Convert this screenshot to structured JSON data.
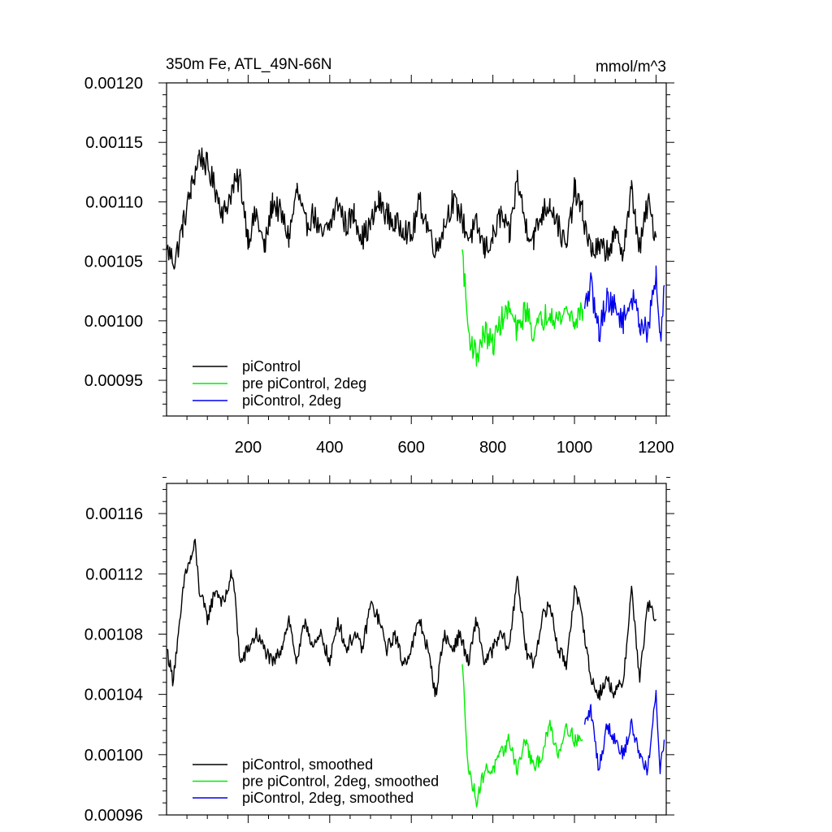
{
  "chart_data": [
    {
      "type": "line",
      "title": "350m Fe, ATL_49N-66N",
      "units": "mmol/m^3",
      "xlim": [
        0,
        1225
      ],
      "ylim": [
        0.00092,
        0.0012
      ],
      "x_ticks": [
        200,
        400,
        600,
        800,
        1000,
        1200
      ],
      "x_tick_labels": [
        "200",
        "400",
        "600",
        "800",
        "1000",
        "1200"
      ],
      "y_ticks": [
        0.00095,
        0.001,
        0.00105,
        0.0011,
        0.00115,
        0.0012
      ],
      "y_tick_labels": [
        "0.00095",
        "0.00100",
        "0.00105",
        "0.00110",
        "0.00115",
        "0.00120"
      ],
      "legend_position": "lower-left",
      "series": [
        {
          "name": "piControl",
          "color": "#000000",
          "x": [
            1,
            20,
            40,
            60,
            80,
            100,
            120,
            140,
            160,
            180,
            200,
            220,
            240,
            260,
            280,
            300,
            320,
            340,
            360,
            380,
            400,
            420,
            440,
            460,
            480,
            500,
            520,
            540,
            560,
            580,
            600,
            620,
            640,
            660,
            680,
            700,
            720,
            740,
            760,
            780,
            800,
            820,
            840,
            860,
            880,
            900,
            920,
            940,
            960,
            980,
            1000,
            1020,
            1040,
            1060,
            1080,
            1100,
            1120,
            1140,
            1160,
            1180,
            1200
          ],
          "y": [
            0.00106,
            0.00105,
            0.00108,
            0.00111,
            0.00114,
            0.00113,
            0.00111,
            0.00109,
            0.00111,
            0.00112,
            0.00107,
            0.00109,
            0.00106,
            0.0011,
            0.00109,
            0.00107,
            0.00111,
            0.00108,
            0.00109,
            0.00107,
            0.00108,
            0.0011,
            0.00108,
            0.00109,
            0.00107,
            0.00108,
            0.0011,
            0.00109,
            0.00108,
            0.00108,
            0.00107,
            0.0011,
            0.00108,
            0.00106,
            0.00108,
            0.0011,
            0.00109,
            0.00107,
            0.00108,
            0.00106,
            0.00107,
            0.00109,
            0.00107,
            0.00112,
            0.00108,
            0.00107,
            0.00109,
            0.0011,
            0.00108,
            0.00106,
            0.00111,
            0.00109,
            0.00106,
            0.00106,
            0.00106,
            0.00107,
            0.00106,
            0.00111,
            0.00106,
            0.0011,
            0.00107
          ]
        },
        {
          "name": "pre piControl, 2deg",
          "color": "#00ee00",
          "x": [
            725,
            740,
            760,
            780,
            800,
            820,
            840,
            860,
            880,
            900,
            920,
            940,
            960,
            980,
            1000,
            1020
          ],
          "y": [
            0.00106,
            0.00099,
            0.00097,
            0.00099,
            0.00098,
            0.001,
            0.00101,
            0.00099,
            0.00101,
            0.00099,
            0.001,
            0.00101,
            0.001,
            0.00101,
            0.001,
            0.00101
          ]
        },
        {
          "name": "piControl, 2deg",
          "color": "#0000ee",
          "x": [
            1025,
            1040,
            1060,
            1080,
            1100,
            1120,
            1140,
            1160,
            1180,
            1200,
            1210,
            1220
          ],
          "y": [
            0.00101,
            0.00103,
            0.00099,
            0.00102,
            0.00101,
            0.001,
            0.00102,
            0.001,
            0.00099,
            0.00104,
            0.00098,
            0.00103
          ]
        }
      ]
    },
    {
      "type": "line",
      "xlim": [
        0,
        1225
      ],
      "ylim": [
        0.00096,
        0.00118
      ],
      "x_ticks": [
        200,
        400,
        600,
        800,
        1000,
        1200
      ],
      "y_ticks": [
        0.00096,
        0.001,
        0.00104,
        0.00108,
        0.00112,
        0.00116
      ],
      "y_tick_labels": [
        "0.00096",
        "0.00100",
        "0.00104",
        "0.00108",
        "0.00112",
        "0.00116"
      ],
      "legend_position": "lower-left",
      "series": [
        {
          "name": "piControl, smoothed",
          "color": "#000000",
          "x": [
            1,
            15,
            30,
            45,
            60,
            70,
            80,
            100,
            120,
            140,
            160,
            170,
            180,
            200,
            220,
            240,
            260,
            280,
            300,
            320,
            340,
            360,
            380,
            400,
            420,
            440,
            460,
            480,
            500,
            520,
            540,
            560,
            580,
            600,
            620,
            640,
            660,
            680,
            700,
            720,
            740,
            760,
            780,
            800,
            820,
            840,
            860,
            880,
            900,
            920,
            940,
            960,
            980,
            1000,
            1020,
            1040,
            1060,
            1080,
            1100,
            1120,
            1140,
            1160,
            1180,
            1200
          ],
          "y": [
            0.00107,
            0.00105,
            0.00108,
            0.00112,
            0.00113,
            0.00114,
            0.00111,
            0.00109,
            0.00111,
            0.0011,
            0.00112,
            0.0011,
            0.00106,
            0.00107,
            0.00108,
            0.00107,
            0.00106,
            0.00107,
            0.00109,
            0.00106,
            0.00109,
            0.00107,
            0.00108,
            0.00106,
            0.00109,
            0.00107,
            0.00108,
            0.00107,
            0.0011,
            0.00109,
            0.00107,
            0.00108,
            0.00106,
            0.00107,
            0.00109,
            0.00107,
            0.00104,
            0.00108,
            0.00107,
            0.00108,
            0.00106,
            0.00109,
            0.00106,
            0.00107,
            0.00108,
            0.00107,
            0.00112,
            0.00107,
            0.00106,
            0.00109,
            0.0011,
            0.00107,
            0.00106,
            0.00111,
            0.00109,
            0.00105,
            0.00104,
            0.00105,
            0.00104,
            0.00105,
            0.00111,
            0.00105,
            0.0011,
            0.00109
          ]
        },
        {
          "name": "pre piControl, 2deg, smoothed",
          "color": "#00ee00",
          "x": [
            725,
            740,
            760,
            780,
            800,
            820,
            840,
            860,
            880,
            900,
            920,
            940,
            960,
            980,
            1000,
            1020
          ],
          "y": [
            0.00106,
            0.00099,
            0.00097,
            0.00099,
            0.00099,
            0.001,
            0.00101,
            0.00099,
            0.00101,
            0.00099,
            0.001,
            0.00102,
            0.001,
            0.00102,
            0.00101,
            0.00101
          ]
        },
        {
          "name": "piControl, 2deg, smoothed",
          "color": "#0000ee",
          "x": [
            1025,
            1040,
            1060,
            1080,
            1100,
            1120,
            1140,
            1160,
            1180,
            1200,
            1210,
            1220
          ],
          "y": [
            0.00102,
            0.00103,
            0.00099,
            0.00102,
            0.00101,
            0.001,
            0.00102,
            0.001,
            0.00099,
            0.00104,
            0.00099,
            0.00101
          ]
        }
      ]
    }
  ]
}
